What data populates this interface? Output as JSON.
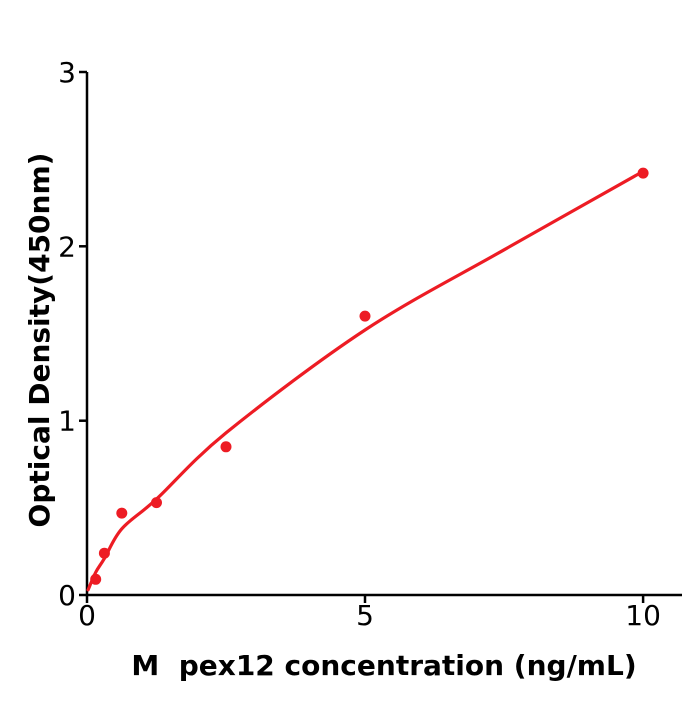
{
  "figure": {
    "background": "#ffffff"
  },
  "chart_data": {
    "type": "scatter",
    "xlabel": "M  pex12 concentration (ng/mL)",
    "ylabel": "Optical Density(450nm)",
    "xlim": [
      0,
      10.7
    ],
    "ylim": [
      0,
      3
    ],
    "x_ticks": [
      0,
      5,
      10
    ],
    "y_ticks": [
      0,
      1,
      2,
      3
    ],
    "grid": false,
    "legend": false,
    "axis_color": "#000000",
    "series": [
      {
        "color": "#ed1c24",
        "marker": "circle",
        "points": [
          {
            "x": 0.156,
            "y": 0.09
          },
          {
            "x": 0.3125,
            "y": 0.24
          },
          {
            "x": 0.625,
            "y": 0.47
          },
          {
            "x": 1.25,
            "y": 0.53
          },
          {
            "x": 2.5,
            "y": 0.85
          },
          {
            "x": 5,
            "y": 1.6
          },
          {
            "x": 10,
            "y": 2.42
          }
        ],
        "fit_curve_points": [
          {
            "x": 0.02,
            "y": 0.03
          },
          {
            "x": 0.156,
            "y": 0.13
          },
          {
            "x": 0.3125,
            "y": 0.21
          },
          {
            "x": 0.625,
            "y": 0.38
          },
          {
            "x": 1.25,
            "y": 0.55
          },
          {
            "x": 2.5,
            "y": 0.93
          },
          {
            "x": 5,
            "y": 1.52
          },
          {
            "x": 7.5,
            "y": 1.98
          },
          {
            "x": 10,
            "y": 2.43
          }
        ]
      }
    ]
  }
}
